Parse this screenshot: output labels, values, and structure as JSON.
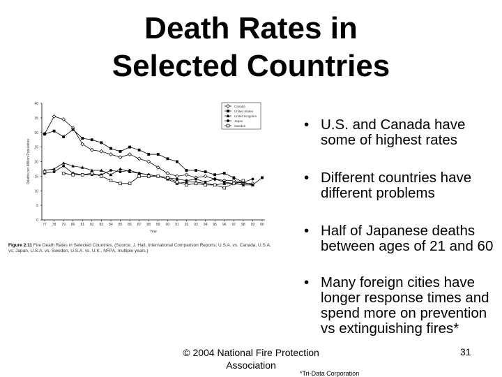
{
  "slide": {
    "title_line1": "Death Rates in",
    "title_line2": "Selected Countries",
    "bullets": [
      "U.S. and Canada have some of highest rates",
      "Different countries have different problems",
      "Half of Japanese deaths between ages of 21 and 60",
      "Many foreign cities have longer response times and spend more on prevention vs extinguishing fires*"
    ],
    "bullet_symbol": "•",
    "copyright": "© 2004 National Fire Protection Association",
    "page_number": "31",
    "footnote": "*Tri-Data Corporation"
  },
  "figure": {
    "caption_label": "Figure 2.11",
    "caption_text": "Fire Death Rates in Selected Countries. (Source: J. Hall, International Comparison Reports: U.S.A. vs. Canada, U.S.A. vs. Japan, U.S.A. vs. Sweden, U.S.A. vs. U.K., NFPA, multiple years.)"
  },
  "chart_data": {
    "type": "line",
    "title": "",
    "xlabel": "Year",
    "ylabel": "Deaths per Million Population",
    "x": [
      "77",
      "78",
      "79",
      "80",
      "81",
      "82",
      "83",
      "84",
      "85",
      "86",
      "87",
      "88",
      "89",
      "90",
      "91",
      "92",
      "93",
      "94",
      "95",
      "96",
      "97",
      "98",
      "99",
      "00"
    ],
    "ylim": [
      0,
      40
    ],
    "yticks": [
      "0",
      "5",
      "10",
      "15",
      "20",
      "25",
      "30",
      "35",
      "40"
    ],
    "legend_position": "top-right",
    "grid": false,
    "series": [
      {
        "name": "Canada",
        "marker": "diamond",
        "values": [
          29.5,
          35.5,
          34.5,
          31.5,
          26,
          24,
          23.5,
          22.5,
          21.5,
          22.5,
          21,
          20,
          18,
          16,
          15,
          15.5,
          14.5,
          15,
          14,
          13.5,
          13.5,
          12.5,
          12.5,
          null
        ]
      },
      {
        "name": "United States",
        "marker": "square",
        "values": [
          29.5,
          30.5,
          28.5,
          31,
          28,
          27.5,
          26.5,
          24.5,
          23.5,
          25,
          24,
          22.5,
          22.5,
          21,
          20,
          17,
          17,
          16.5,
          15.5,
          16,
          14.5,
          13,
          12,
          14.5
        ]
      },
      {
        "name": "United Kingdom",
        "marker": "triangle",
        "values": [
          17,
          17.5,
          19.5,
          18.5,
          18,
          17,
          17,
          15.5,
          17.5,
          16.5,
          16,
          15.5,
          15,
          14,
          12.5,
          13,
          13,
          12.5,
          12,
          12.5,
          12.5,
          12,
          12,
          null
        ]
      },
      {
        "name": "Japan",
        "marker": "circle",
        "values": [
          16,
          16.5,
          18.5,
          16,
          15.5,
          15.5,
          15.5,
          17,
          16.5,
          17,
          16,
          15.5,
          15,
          14.5,
          14,
          13.5,
          14,
          13,
          14,
          13,
          12.5,
          13,
          14,
          null
        ]
      },
      {
        "name": "Sweden",
        "marker": "square-open",
        "values": [
          16.5,
          null,
          16,
          15.5,
          15.5,
          16,
          15,
          13.5,
          12.5,
          12.5,
          15,
          15,
          15,
          14.5,
          13,
          12,
          12.5,
          12,
          12,
          11,
          12.5,
          13.5,
          null,
          null
        ]
      }
    ]
  }
}
